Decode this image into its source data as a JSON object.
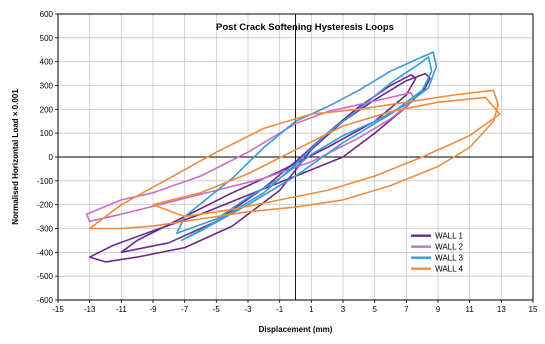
{
  "chart_data": {
    "type": "line",
    "title": "Post Crack Softening Hysteresis Loops",
    "xlabel": "Displacement (mm)",
    "ylabel": "Normalised Horizontal Load × 0.001",
    "xlim": [
      -15,
      15
    ],
    "ylim": [
      -600,
      600
    ],
    "x_ticks": [
      -15,
      -13,
      -11,
      -9,
      -7,
      -5,
      -3,
      -1,
      1,
      3,
      5,
      7,
      9,
      11,
      13,
      15
    ],
    "x_tick_labels": [
      "-15",
      "-13",
      "-11",
      "-9",
      "-7",
      "-5",
      "-3",
      "-1",
      "1",
      "3",
      "5",
      "7",
      "9",
      "11",
      "13",
      "15"
    ],
    "y_ticks": [
      -600,
      -500,
      -400,
      -300,
      -200,
      -100,
      0,
      100,
      200,
      300,
      400,
      500,
      600
    ],
    "y_tick_labels": [
      "-600",
      "-500",
      "-400",
      "-300",
      "-200",
      "-100",
      "0",
      "100",
      "200",
      "300",
      "400",
      "500",
      "600"
    ],
    "grid": true,
    "legend_position": "bottom-right",
    "series": [
      {
        "name": "WALL 1",
        "color": "#6a2a8c",
        "loops": [
          [
            [
              -12,
              -440
            ],
            [
              -10,
              -420
            ],
            [
              -7,
              -380
            ],
            [
              -4,
              -290
            ],
            [
              -1,
              -140
            ],
            [
              1,
              30
            ],
            [
              3,
              150
            ],
            [
              5,
              240
            ],
            [
              7,
              320
            ],
            [
              8.2,
              350
            ],
            [
              8.5,
              330
            ],
            [
              8.2,
              290
            ],
            [
              7,
              210
            ],
            [
              5,
              100
            ],
            [
              3,
              0
            ],
            [
              0,
              -80
            ],
            [
              -3,
              -160
            ],
            [
              -6,
              -240
            ],
            [
              -9,
              -310
            ],
            [
              -11.5,
              -370
            ],
            [
              -13,
              -420
            ],
            [
              -12,
              -440
            ]
          ],
          [
            [
              -11,
              -400
            ],
            [
              -8,
              -360
            ],
            [
              -5,
              -270
            ],
            [
              -2,
              -130
            ],
            [
              0,
              -20
            ],
            [
              2,
              100
            ],
            [
              4,
              210
            ],
            [
              6,
              300
            ],
            [
              7.3,
              345
            ],
            [
              7.6,
              330
            ],
            [
              7,
              260
            ],
            [
              5,
              150
            ],
            [
              2,
              40
            ],
            [
              -1,
              -60
            ],
            [
              -4,
              -150
            ],
            [
              -7,
              -250
            ],
            [
              -10,
              -350
            ],
            [
              -11,
              -400
            ]
          ]
        ]
      },
      {
        "name": "WALL 2",
        "color": "#c870c8",
        "loops": [
          [
            [
              -13.2,
              -240
            ],
            [
              -11,
              -180
            ],
            [
              -9,
              -150
            ],
            [
              -6,
              -80
            ],
            [
              -3,
              20
            ],
            [
              0,
              140
            ],
            [
              2,
              190
            ],
            [
              4,
              220
            ],
            [
              6,
              250
            ],
            [
              7.3,
              270
            ],
            [
              7.5,
              240
            ],
            [
              6,
              160
            ],
            [
              4,
              80
            ],
            [
              1,
              -20
            ],
            [
              -2,
              -90
            ],
            [
              -5,
              -140
            ],
            [
              -8,
              -190
            ],
            [
              -11,
              -240
            ],
            [
              -13,
              -270
            ],
            [
              -13.2,
              -240
            ]
          ]
        ]
      },
      {
        "name": "WALL 3",
        "color": "#3a9ad8",
        "loops": [
          [
            [
              -7.5,
              -320
            ],
            [
              -7,
              -250
            ],
            [
              -4,
              -90
            ],
            [
              -2,
              40
            ],
            [
              0,
              150
            ],
            [
              2,
              210
            ],
            [
              4,
              280
            ],
            [
              6,
              360
            ],
            [
              8,
              420
            ],
            [
              8.7,
              440
            ],
            [
              8.9,
              380
            ],
            [
              8.4,
              290
            ],
            [
              7,
              220
            ],
            [
              5,
              150
            ],
            [
              3,
              90
            ],
            [
              1,
              10
            ],
            [
              -1,
              -90
            ],
            [
              -3,
              -170
            ],
            [
              -5,
              -260
            ],
            [
              -7.5,
              -320
            ]
          ],
          [
            [
              -7.2,
              -350
            ],
            [
              -5,
              -270
            ],
            [
              -2,
              -150
            ],
            [
              0,
              -30
            ],
            [
              2,
              100
            ],
            [
              4,
              200
            ],
            [
              6,
              310
            ],
            [
              7.8,
              390
            ],
            [
              8.4,
              420
            ],
            [
              8.6,
              360
            ],
            [
              8,
              280
            ],
            [
              6,
              180
            ],
            [
              3,
              60
            ],
            [
              0,
              -80
            ],
            [
              -3,
              -200
            ],
            [
              -6,
              -310
            ],
            [
              -7.2,
              -350
            ]
          ]
        ]
      },
      {
        "name": "WALL 4",
        "color": "#f08c3c",
        "loops": [
          [
            [
              -13,
              -300
            ],
            [
              -11,
              -200
            ],
            [
              -8,
              -90
            ],
            [
              -5,
              20
            ],
            [
              -2,
              120
            ],
            [
              1,
              180
            ],
            [
              4,
              200
            ],
            [
              7,
              230
            ],
            [
              10,
              260
            ],
            [
              12.5,
              280
            ],
            [
              12.8,
              220
            ],
            [
              12.5,
              150
            ],
            [
              11,
              40
            ],
            [
              9,
              -40
            ],
            [
              6,
              -120
            ],
            [
              3,
              -180
            ],
            [
              0,
              -210
            ],
            [
              -3,
              -230
            ],
            [
              -6,
              -260
            ],
            [
              -9,
              -290
            ],
            [
              -11,
              -300
            ],
            [
              -13,
              -300
            ]
          ],
          [
            [
              -9,
              -200
            ],
            [
              -6,
              -150
            ],
            [
              -3,
              -70
            ],
            [
              0,
              30
            ],
            [
              3,
              130
            ],
            [
              6,
              190
            ],
            [
              9,
              230
            ],
            [
              12,
              250
            ],
            [
              12.9,
              180
            ],
            [
              11,
              90
            ],
            [
              8,
              0
            ],
            [
              5,
              -80
            ],
            [
              2,
              -140
            ],
            [
              -1,
              -180
            ],
            [
              -4,
              -220
            ],
            [
              -7,
              -250
            ],
            [
              -9,
              -200
            ]
          ]
        ]
      }
    ]
  }
}
